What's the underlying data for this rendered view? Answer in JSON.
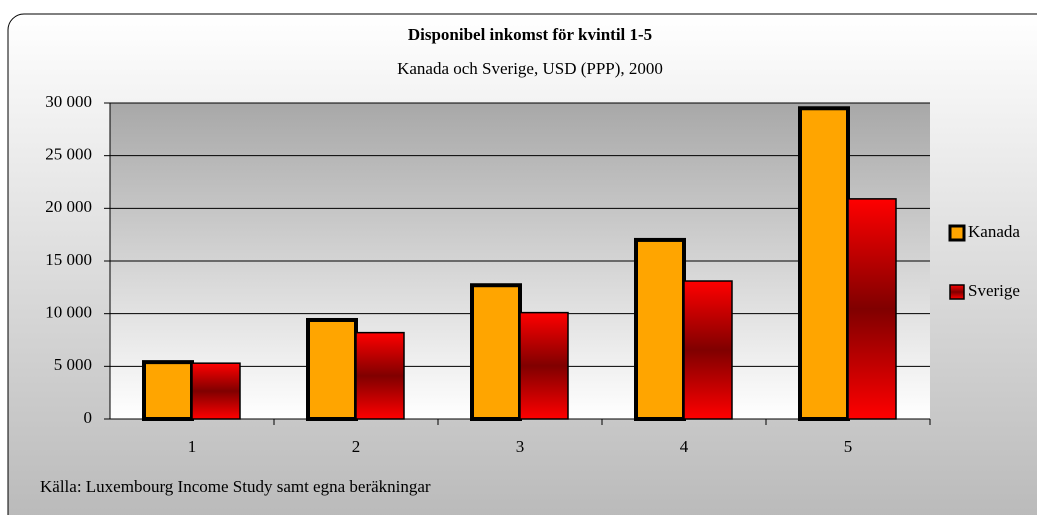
{
  "chart_data": {
    "type": "bar",
    "title": "Disponibel inkomst för kvintil 1-5",
    "subtitle": "Kanada och Sverige, USD (PPP), 2000",
    "annotation": "Källa: Luxembourg Income Study samt egna beräkningar",
    "categories": [
      "1",
      "2",
      "3",
      "4",
      "5"
    ],
    "series": [
      {
        "name": "Kanada",
        "color": "#ffa500",
        "values": [
          5400,
          9400,
          12700,
          17000,
          29500
        ]
      },
      {
        "name": "Sverige",
        "color": "#ff0000",
        "values": [
          5300,
          8200,
          10100,
          13100,
          20900
        ]
      }
    ],
    "ylim": [
      0,
      30000
    ],
    "yticks": [
      {
        "value": 0,
        "label": "0"
      },
      {
        "value": 5000,
        "label": "5 000"
      },
      {
        "value": 10000,
        "label": "10 000"
      },
      {
        "value": 15000,
        "label": "15 000"
      },
      {
        "value": 20000,
        "label": "20 000"
      },
      {
        "value": 25000,
        "label": "25 000"
      },
      {
        "value": 30000,
        "label": "30 000"
      }
    ],
    "grid": true,
    "legend": "right"
  }
}
